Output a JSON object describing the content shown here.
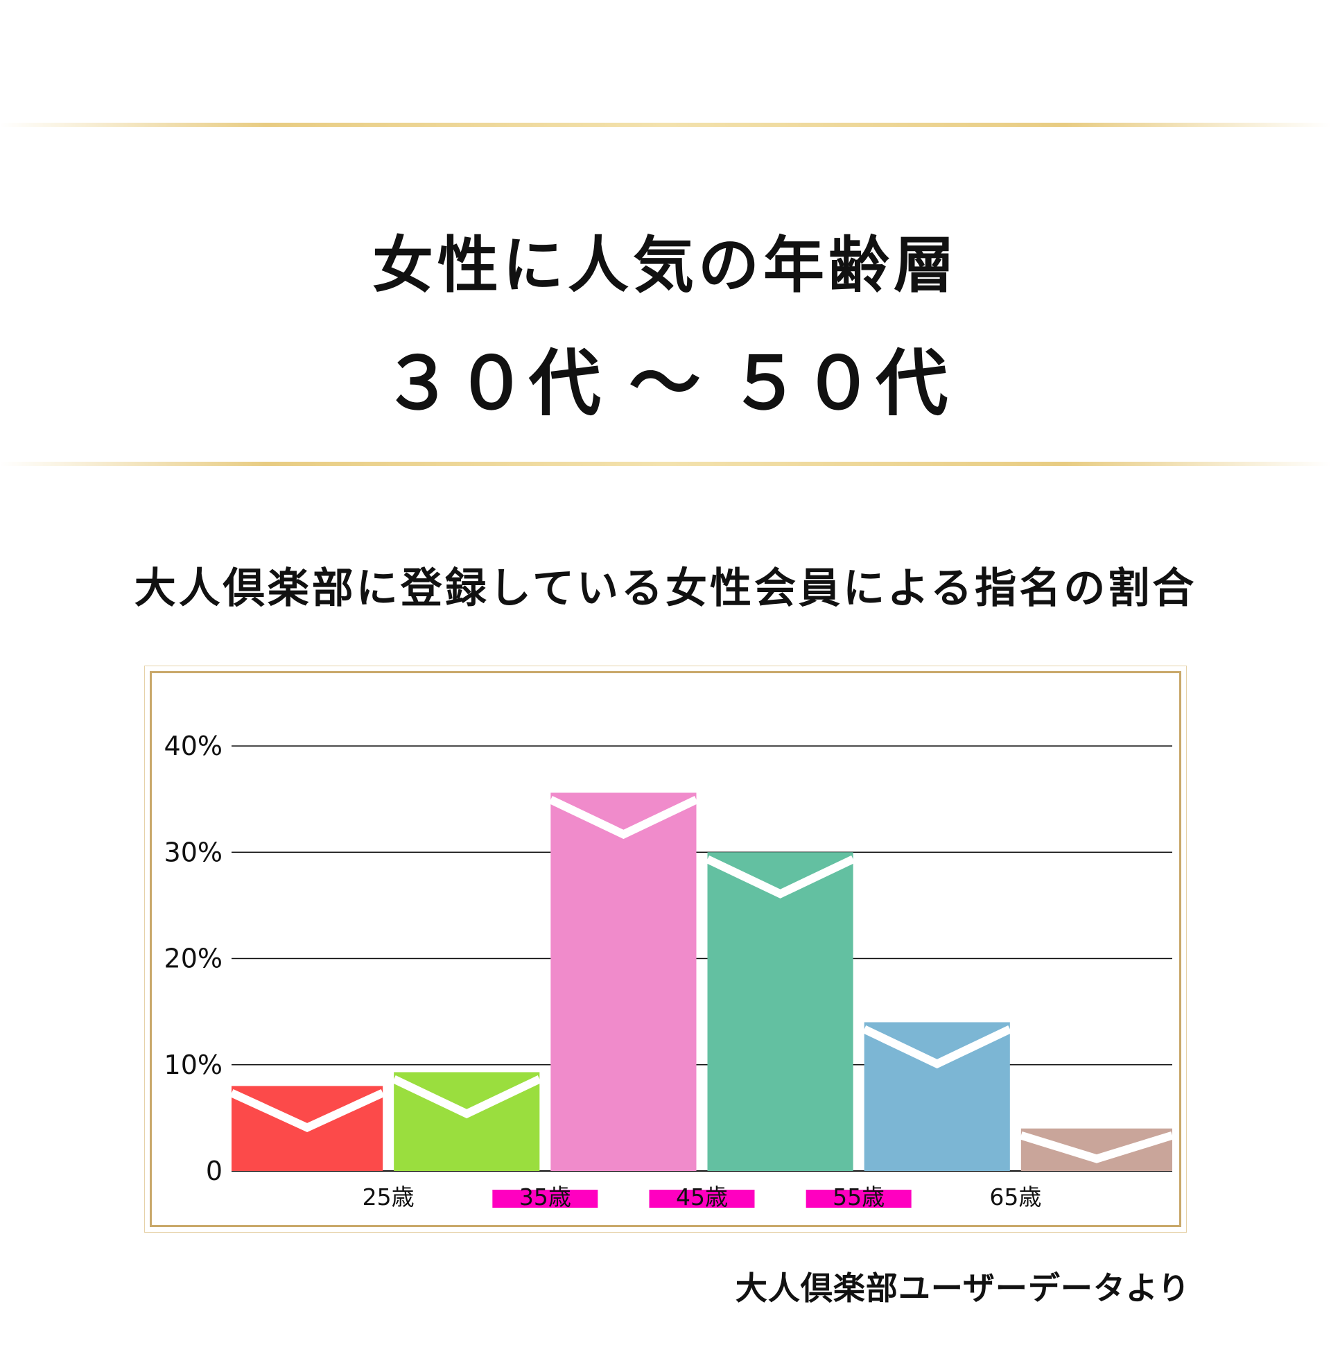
{
  "header": {
    "headline_1": "女性に人気の年齢層",
    "headline_2": "３０代 〜 ５０代",
    "subtitle": "大人倶楽部に登録している女性会員による指名の割合"
  },
  "footer": {
    "source": "大人倶楽部ユーザーデータより"
  },
  "colors": {
    "gold": "#c9a86a",
    "highlight": "#ff00c0"
  },
  "chart_data": {
    "type": "bar",
    "title": "",
    "xlabel": "",
    "ylabel": "",
    "ylim": [
      0,
      40
    ],
    "grid": true,
    "y_ticks": [
      {
        "value": 0,
        "label": "0"
      },
      {
        "value": 10,
        "label": "10%"
      },
      {
        "value": 20,
        "label": "20%"
      },
      {
        "value": 30,
        "label": "30%"
      },
      {
        "value": 40,
        "label": "40%"
      }
    ],
    "values": [
      8,
      9.3,
      35.6,
      30,
      14,
      4
    ],
    "bar_colors": [
      "#fc4a4a",
      "#9ade3e",
      "#f08bcb",
      "#63c0a1",
      "#7cb6d4",
      "#c9a59a"
    ],
    "x_labels": [
      {
        "text": "25歳",
        "highlight": false
      },
      {
        "text": "35歳",
        "highlight": true
      },
      {
        "text": "45歳",
        "highlight": true
      },
      {
        "text": "55歳",
        "highlight": true
      },
      {
        "text": "65歳",
        "highlight": false
      }
    ]
  }
}
